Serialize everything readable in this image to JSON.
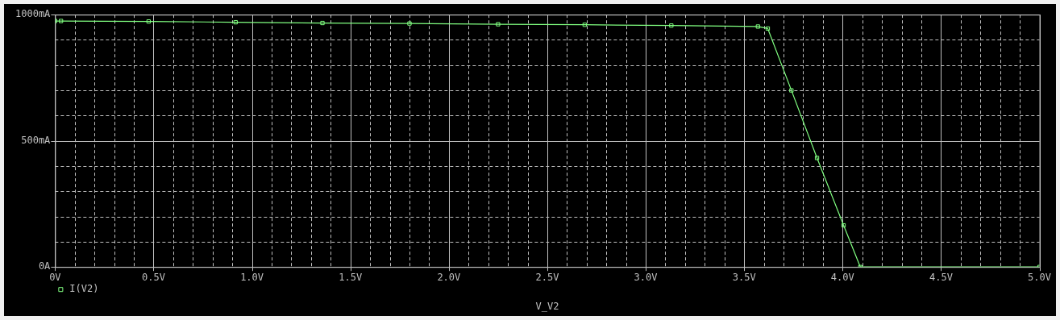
{
  "chart_data": {
    "type": "line",
    "xlabel": "V_V2",
    "xlim": [
      0,
      5
    ],
    "ylim": [
      0,
      1000
    ],
    "xticks": [
      {
        "value": 0,
        "label": "0V"
      },
      {
        "value": 0.1,
        "label": null
      },
      {
        "value": 0.2,
        "label": null
      },
      {
        "value": 0.3,
        "label": null
      },
      {
        "value": 0.4,
        "label": null
      },
      {
        "value": 0.5,
        "label": "0.5V"
      },
      {
        "value": 0.6,
        "label": null
      },
      {
        "value": 0.7,
        "label": null
      },
      {
        "value": 0.8,
        "label": null
      },
      {
        "value": 0.9,
        "label": null
      },
      {
        "value": 1,
        "label": "1.0V"
      },
      {
        "value": 1.1,
        "label": null
      },
      {
        "value": 1.2,
        "label": null
      },
      {
        "value": 1.3,
        "label": null
      },
      {
        "value": 1.4,
        "label": null
      },
      {
        "value": 1.5,
        "label": "1.5V"
      },
      {
        "value": 1.6,
        "label": null
      },
      {
        "value": 1.7,
        "label": null
      },
      {
        "value": 1.8,
        "label": null
      },
      {
        "value": 1.9,
        "label": null
      },
      {
        "value": 2,
        "label": "2.0V"
      },
      {
        "value": 2.1,
        "label": null
      },
      {
        "value": 2.2,
        "label": null
      },
      {
        "value": 2.3,
        "label": null
      },
      {
        "value": 2.4,
        "label": null
      },
      {
        "value": 2.5,
        "label": "2.5V"
      },
      {
        "value": 2.6,
        "label": null
      },
      {
        "value": 2.7,
        "label": null
      },
      {
        "value": 2.8,
        "label": null
      },
      {
        "value": 2.9,
        "label": null
      },
      {
        "value": 3,
        "label": "3.0V"
      },
      {
        "value": 3.1,
        "label": null
      },
      {
        "value": 3.2,
        "label": null
      },
      {
        "value": 3.3,
        "label": null
      },
      {
        "value": 3.4,
        "label": null
      },
      {
        "value": 3.5,
        "label": "3.5V"
      },
      {
        "value": 3.6,
        "label": null
      },
      {
        "value": 3.7,
        "label": null
      },
      {
        "value": 3.8,
        "label": null
      },
      {
        "value": 3.9,
        "label": null
      },
      {
        "value": 4,
        "label": "4.0V"
      },
      {
        "value": 4.1,
        "label": null
      },
      {
        "value": 4.2,
        "label": null
      },
      {
        "value": 4.3,
        "label": null
      },
      {
        "value": 4.4,
        "label": null
      },
      {
        "value": 4.5,
        "label": "4.5V"
      },
      {
        "value": 4.6,
        "label": null
      },
      {
        "value": 4.7,
        "label": null
      },
      {
        "value": 4.8,
        "label": null
      },
      {
        "value": 4.9,
        "label": null
      },
      {
        "value": 5,
        "label": "5.0V"
      }
    ],
    "yticks": [
      {
        "value": 0,
        "label": "0A"
      },
      {
        "value": 100,
        "label": null
      },
      {
        "value": 200,
        "label": null
      },
      {
        "value": 300,
        "label": null
      },
      {
        "value": 400,
        "label": null
      },
      {
        "value": 500,
        "label": "500mA"
      },
      {
        "value": 600,
        "label": null
      },
      {
        "value": 700,
        "label": null
      },
      {
        "value": 800,
        "label": null
      },
      {
        "value": 900,
        "label": null
      },
      {
        "value": 1000,
        "label": "1000mA"
      }
    ],
    "grid": true,
    "legend": "bottom left",
    "marker": "square",
    "series": [
      {
        "name": "I(V2)",
        "color": "#80ff80",
        "x": [
          0,
          0.03,
          0.475,
          0.917,
          1.358,
          1.8,
          2.25,
          2.69,
          3.13,
          3.57,
          3.62,
          3.74,
          3.87,
          4.005,
          4.09,
          5
        ],
        "values": [
          975,
          975,
          973,
          970,
          967,
          965,
          962,
          960,
          957,
          953,
          945,
          700,
          432,
          165,
          0,
          0
        ]
      }
    ]
  }
}
